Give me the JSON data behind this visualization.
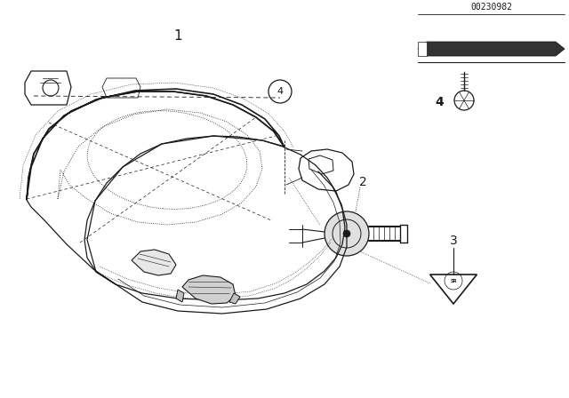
{
  "background_color": "#ffffff",
  "part_number": "00230982",
  "fig_width": 6.4,
  "fig_height": 4.48,
  "dpi": 100,
  "line_color": "#1a1a1a",
  "lw_main": 0.9,
  "lw_thin": 0.5,
  "lw_thick": 1.2
}
